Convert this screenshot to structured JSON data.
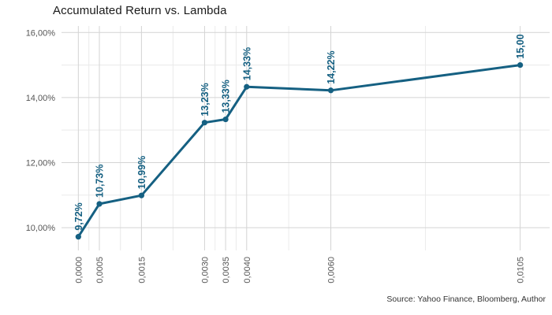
{
  "title": "Accumulated Return vs. Lambda",
  "source_note": "Source: Yahoo Finance, Bloomberg, Author",
  "colors": {
    "series": "#156082",
    "point_label": "#156082",
    "grid_major": "#d4d4d4",
    "grid_minor": "#eaeaea",
    "axis_text": "#555555",
    "title_text": "#1a1a1a",
    "background": "#ffffff"
  },
  "chart_data": {
    "type": "line",
    "title": "Accumulated Return vs. Lambda",
    "xlabel": "",
    "ylabel": "",
    "x": [
      0.0,
      0.0005,
      0.0015,
      0.003,
      0.0035,
      0.004,
      0.006,
      0.0105
    ],
    "y": [
      9.72,
      10.73,
      10.99,
      13.23,
      13.33,
      14.33,
      14.22,
      15.0
    ],
    "point_labels": [
      "9,72%",
      "10,73%",
      "10,99%",
      "13,23%",
      "13,33%",
      "14,33%",
      "14,22%",
      "15,00"
    ],
    "x_tick_labels": [
      "0,0000",
      "0,0005",
      "0,0015",
      "0,0030",
      "0,0035",
      "0,0040",
      "0,0060",
      "0,0105"
    ],
    "y_ticks": [
      10,
      12,
      14,
      16
    ],
    "y_tick_labels": [
      "10,00%",
      "12,00%",
      "14,00%",
      "16,00%"
    ],
    "y_minor_ticks": [
      11,
      13,
      15
    ],
    "xlim": [
      -0.0004,
      0.0112
    ],
    "ylim": [
      9.3,
      16.2
    ],
    "grid": true,
    "legend": false,
    "marker": "circle",
    "label_rotation_deg": -90,
    "x_tick_rotation_deg": -90
  }
}
